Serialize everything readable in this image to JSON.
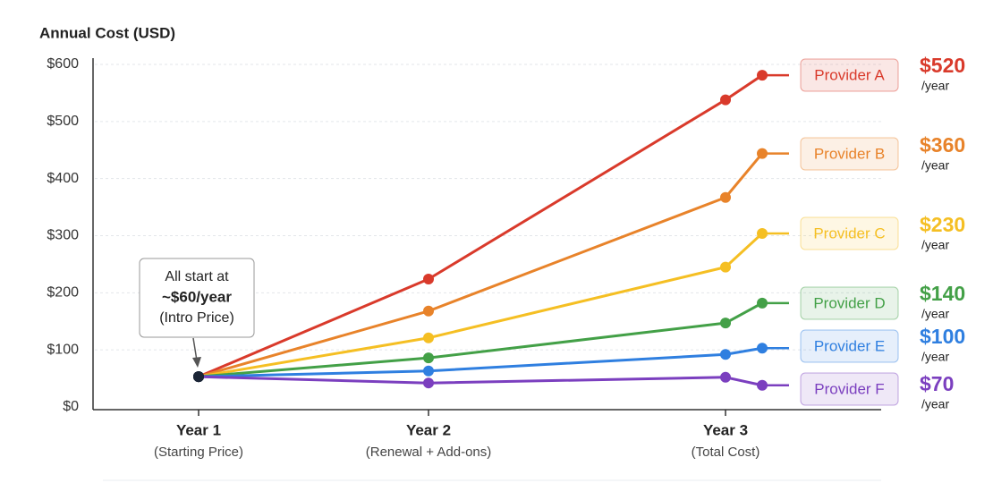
{
  "chart_data": {
    "type": "line",
    "y_axis_label": "Annual Cost (USD)",
    "categories": [
      "Year 1",
      "Year 2",
      "Year 3",
      null
    ],
    "category_sublabels": [
      "(Starting Price)",
      "(Renewal + Add-ons)",
      "(Total Cost)",
      null
    ],
    "ylim": [
      0,
      600
    ],
    "yticks": [
      {
        "value": 0,
        "label": "$0"
      },
      {
        "value": 100,
        "label": "$100"
      },
      {
        "value": 200,
        "label": "$200"
      },
      {
        "value": 300,
        "label": "$300"
      },
      {
        "value": 400,
        "label": "$400"
      },
      {
        "value": 500,
        "label": "$500"
      },
      {
        "value": 600,
        "label": "$600"
      }
    ],
    "grid": true,
    "annotation": {
      "line1": "All start at",
      "line2": "~$60/year",
      "line3": "(Intro Price)"
    },
    "start_color": "#1b2536",
    "series": [
      {
        "name": "Provider A",
        "color": "#d93a2b",
        "values": [
          53,
          224,
          538,
          581
        ],
        "price_label": "$520",
        "price_unit": "/year"
      },
      {
        "name": "Provider B",
        "color": "#e8832a",
        "values": [
          53,
          168,
          367,
          444
        ],
        "price_label": "$360",
        "price_unit": "/year"
      },
      {
        "name": "Provider C",
        "color": "#f5bf23",
        "values": [
          53,
          121,
          245,
          304
        ],
        "price_label": "$230",
        "price_unit": "/year"
      },
      {
        "name": "Provider D",
        "color": "#43a047",
        "values": [
          53,
          86,
          147,
          182
        ],
        "price_label": "$140",
        "price_unit": "/year"
      },
      {
        "name": "Provider E",
        "color": "#2f7fe0",
        "values": [
          53,
          63,
          92,
          103
        ],
        "price_label": "$100",
        "price_unit": "/year"
      },
      {
        "name": "Provider F",
        "color": "#7b3fbf",
        "values": [
          53,
          42,
          52,
          38
        ],
        "price_label": "$70",
        "price_unit": "/year"
      }
    ]
  }
}
